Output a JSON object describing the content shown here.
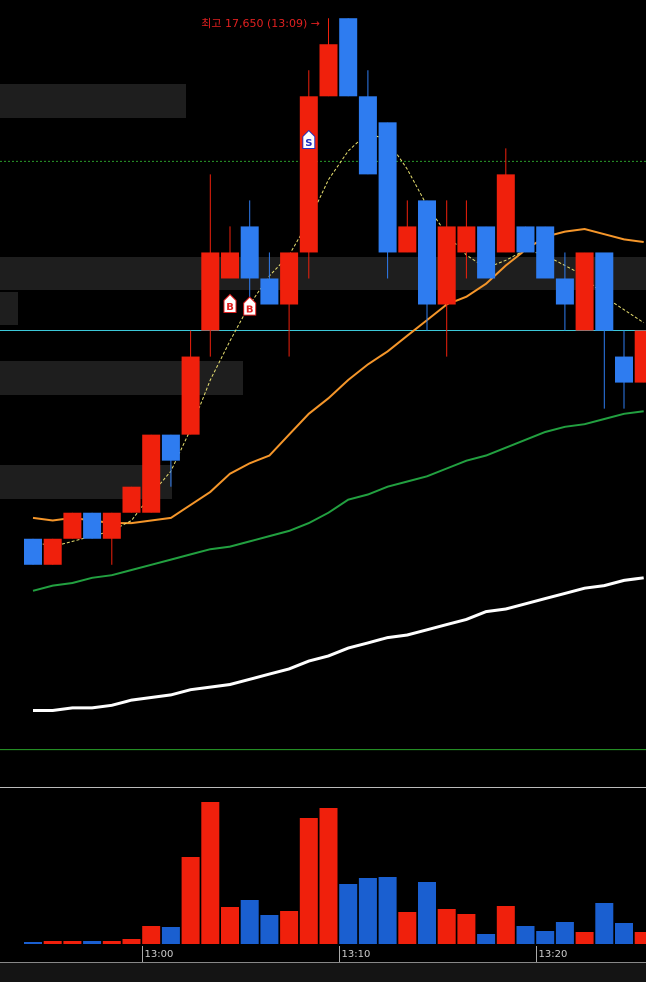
{
  "chart_data": {
    "type": "candlestick",
    "annotation": "최고 17,650 (13:09) →",
    "categories": [
      null,
      null,
      null,
      null,
      null,
      null,
      "13:00",
      null,
      null,
      null,
      null,
      null,
      null,
      null,
      null,
      null,
      "13:10",
      null,
      null,
      null,
      null,
      null,
      null,
      null,
      null,
      null,
      "13:20",
      null,
      null,
      null,
      null,
      null
    ],
    "open": [
      17450,
      17440,
      17450,
      17460,
      17450,
      17460,
      17460,
      17490,
      17490,
      17530,
      17550,
      17570,
      17550,
      17540,
      17560,
      17620,
      17650,
      17620,
      17610,
      17560,
      17580,
      17540,
      17560,
      17570,
      17560,
      17570,
      17570,
      17550,
      17530,
      17560,
      17520,
      17510
    ],
    "high": [
      17450,
      17450,
      17460,
      17460,
      17460,
      17470,
      17490,
      17490,
      17530,
      17590,
      17570,
      17580,
      17560,
      17560,
      17630,
      17650,
      17650,
      17630,
      17610,
      17580,
      17580,
      17580,
      17580,
      17570,
      17600,
      17570,
      17570,
      17560,
      17560,
      17560,
      17530,
      17530
    ],
    "low": [
      17440,
      17440,
      17450,
      17450,
      17440,
      17460,
      17460,
      17470,
      17490,
      17520,
      17550,
      17540,
      17540,
      17520,
      17550,
      17620,
      17620,
      17590,
      17550,
      17560,
      17530,
      17520,
      17550,
      17550,
      17560,
      17560,
      17550,
      17530,
      17530,
      17500,
      17500,
      17510
    ],
    "close": [
      17440,
      17450,
      17460,
      17450,
      17460,
      17470,
      17490,
      17480,
      17520,
      17560,
      17560,
      17550,
      17540,
      17560,
      17620,
      17640,
      17620,
      17590,
      17560,
      17570,
      17540,
      17570,
      17570,
      17550,
      17590,
      17560,
      17550,
      17540,
      17560,
      17530,
      17510,
      17530
    ],
    "up_color": "#f0200c",
    "down_color": "#2e7cf0",
    "ylim": [
      17355,
      17657
    ],
    "moving_averages": [
      {
        "color": "#ffffff",
        "width": 3,
        "dashed": false,
        "values": [
          17384,
          17384,
          17385,
          17385,
          17386,
          17388,
          17389,
          17390,
          17392,
          17393,
          17394,
          17396,
          17398,
          17400,
          17403,
          17405,
          17408,
          17410,
          17412,
          17413,
          17415,
          17417,
          17419,
          17422,
          17423,
          17425,
          17427,
          17429,
          17431,
          17432,
          17434,
          17435
        ]
      },
      {
        "color": "#22a040",
        "width": 2,
        "dashed": false,
        "values": [
          17430,
          17432,
          17433,
          17435,
          17436,
          17438,
          17440,
          17442,
          17444,
          17446,
          17447,
          17449,
          17451,
          17453,
          17456,
          17460,
          17465,
          17467,
          17470,
          17472,
          17474,
          17477,
          17480,
          17482,
          17485,
          17488,
          17491,
          17493,
          17494,
          17496,
          17498,
          17499
        ]
      },
      {
        "color": "#f5962a",
        "width": 2,
        "dashed": false,
        "values": [
          17458,
          17457,
          17458,
          17457,
          17456,
          17456,
          17457,
          17458,
          17463,
          17468,
          17475,
          17479,
          17482,
          17490,
          17498,
          17504,
          17511,
          17517,
          17522,
          17528,
          17534,
          17540,
          17543,
          17548,
          17555,
          17561,
          17566,
          17568,
          17569,
          17567,
          17565,
          17564
        ]
      },
      {
        "color": "#e8e070",
        "width": 1,
        "dashed": true,
        "values": [
          17449,
          17447,
          17449,
          17451,
          17453,
          17457,
          17467,
          17476,
          17492,
          17511,
          17526,
          17540,
          17551,
          17559,
          17572,
          17588,
          17599,
          17606,
          17603,
          17592,
          17578,
          17567,
          17559,
          17554,
          17557,
          17561,
          17559,
          17555,
          17551,
          17543,
          17538,
          17533
        ]
      }
    ],
    "levels": [
      {
        "value": 17595,
        "color": "#2a9a2a",
        "dashed": true
      },
      {
        "value": 17530,
        "color": "#3cc8d8",
        "dashed": false
      },
      {
        "value": 17369,
        "color": "#2aa02a",
        "dashed": false
      }
    ],
    "signals": [
      {
        "index": 10,
        "price": 17540,
        "label": "B",
        "color": "#e02020"
      },
      {
        "index": 11,
        "price": 17539,
        "label": "B",
        "color": "#e02020"
      },
      {
        "index": 14,
        "price": 17603,
        "label": "S",
        "color": "#2030c0"
      }
    ],
    "volume": {
      "values": [
        2,
        3,
        3,
        3,
        3,
        5,
        18,
        17,
        87,
        142,
        37,
        44,
        29,
        33,
        126,
        136,
        60,
        66,
        67,
        32,
        62,
        35,
        30,
        10,
        38,
        18,
        13,
        22,
        12,
        41,
        21,
        12
      ],
      "up_color": "#f0200c",
      "down_color": "#1a5fd0",
      "ylim": [
        0,
        154
      ]
    }
  }
}
